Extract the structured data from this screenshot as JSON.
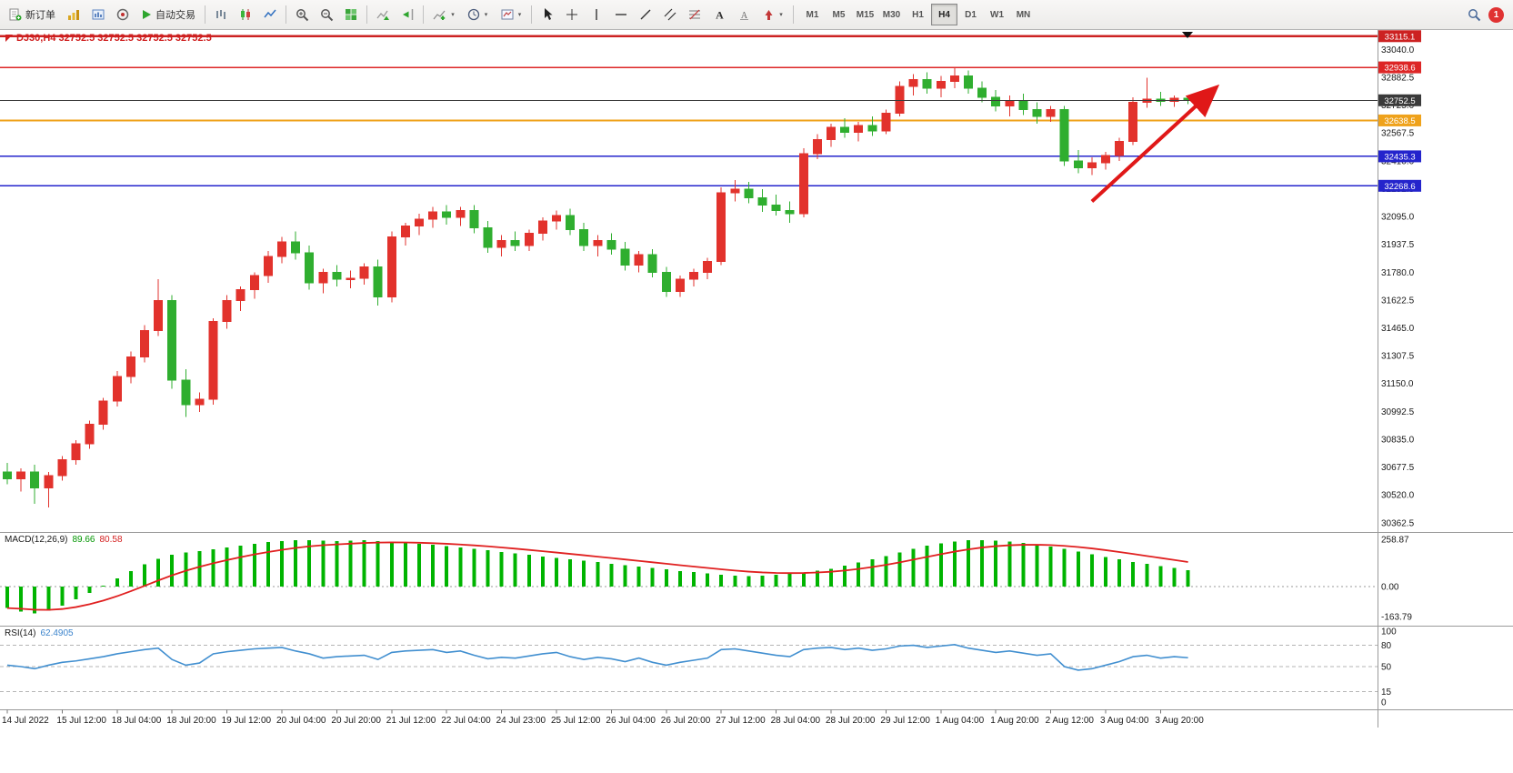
{
  "toolbar": {
    "new_order": "新订单",
    "auto_trading": "自动交易",
    "timeframes": [
      "M1",
      "M5",
      "M15",
      "M30",
      "H1",
      "H4",
      "D1",
      "W1",
      "MN"
    ],
    "active_timeframe": "H4",
    "notification_count": "1"
  },
  "chart": {
    "title": "DJ30,H4 32752.5 32752.5 32752.5 32752.5"
  },
  "chart_data": {
    "type": "candlestick",
    "symbol": "DJ30",
    "timeframe": "H4",
    "colors": {
      "up": "#e2322c",
      "down": "#2fae2f",
      "macd_hist": "#00b400",
      "macd_signal": "#e02020",
      "rsi": "#418fd0"
    },
    "y_axis": {
      "min": 30310,
      "max": 33150,
      "tick_labels": [
        "33040.0",
        "32882.5",
        "32725.0",
        "32567.5",
        "32410.0",
        "32252.5",
        "32095.0",
        "31937.5",
        "31780.0",
        "31622.5",
        "31465.0",
        "31307.5",
        "31150.0",
        "30992.5",
        "30835.0",
        "30677.5",
        "30520.0",
        "30362.5"
      ]
    },
    "hlines": [
      {
        "price": 33115.1,
        "label": "33115.1",
        "color": "#cc2222",
        "width": 2.5
      },
      {
        "price": 32938.6,
        "label": "32938.6",
        "color": "#dd2626",
        "width": 1.6
      },
      {
        "price": 32752.5,
        "label": "32752.5",
        "color": "#3a3a3a",
        "width": 1,
        "current": true
      },
      {
        "price": 32638.5,
        "label": "32638.5",
        "color": "#efa21b",
        "width": 2
      },
      {
        "price": 32435.3,
        "label": "32435.3",
        "color": "#2424cc",
        "width": 1.6
      },
      {
        "price": 32268.6,
        "label": "32268.6",
        "color": "#2424cc",
        "width": 1.6
      }
    ],
    "current_price": 32752.5,
    "x_labels": [
      {
        "text": "14 Jul 2022",
        "i": 0
      },
      {
        "text": "15 Jul 12:00",
        "i": 4
      },
      {
        "text": "18 Jul 04:00",
        "i": 8
      },
      {
        "text": "18 Jul 20:00",
        "i": 12
      },
      {
        "text": "19 Jul 12:00",
        "i": 16
      },
      {
        "text": "20 Jul 04:00",
        "i": 20
      },
      {
        "text": "20 Jul 20:00",
        "i": 24
      },
      {
        "text": "21 Jul 12:00",
        "i": 28
      },
      {
        "text": "22 Jul 04:00",
        "i": 32
      },
      {
        "text": "24 Jul 23:00",
        "i": 36
      },
      {
        "text": "25 Jul 12:00",
        "i": 40
      },
      {
        "text": "26 Jul 04:00",
        "i": 44
      },
      {
        "text": "26 Jul 20:00",
        "i": 48
      },
      {
        "text": "27 Jul 12:00",
        "i": 52
      },
      {
        "text": "28 Jul 04:00",
        "i": 56
      },
      {
        "text": "28 Jul 20:00",
        "i": 60
      },
      {
        "text": "29 Jul 12:00",
        "i": 64
      },
      {
        "text": "1 Aug 04:00",
        "i": 68
      },
      {
        "text": "1 Aug 20:00",
        "i": 72
      },
      {
        "text": "2 Aug 12:00",
        "i": 76
      },
      {
        "text": "3 Aug 04:00",
        "i": 80
      },
      {
        "text": "3 Aug 20:00",
        "i": 84
      }
    ],
    "ohlc": [
      [
        30650,
        30700,
        30580,
        30610
      ],
      [
        30610,
        30670,
        30540,
        30650
      ],
      [
        30650,
        30690,
        30470,
        30560
      ],
      [
        30560,
        30650,
        30450,
        30630
      ],
      [
        30630,
        30740,
        30600,
        30720
      ],
      [
        30720,
        30830,
        30690,
        30810
      ],
      [
        30810,
        30940,
        30780,
        30920
      ],
      [
        30920,
        31070,
        30890,
        31050
      ],
      [
        31050,
        31220,
        31020,
        31190
      ],
      [
        31190,
        31330,
        31150,
        31300
      ],
      [
        31300,
        31480,
        31270,
        31450
      ],
      [
        31450,
        31740,
        31420,
        31620
      ],
      [
        31620,
        31650,
        31120,
        31170
      ],
      [
        31170,
        31230,
        30960,
        31030
      ],
      [
        31030,
        31100,
        30990,
        31060
      ],
      [
        31060,
        31520,
        31030,
        31500
      ],
      [
        31500,
        31650,
        31460,
        31620
      ],
      [
        31620,
        31700,
        31560,
        31680
      ],
      [
        31680,
        31780,
        31630,
        31760
      ],
      [
        31760,
        31900,
        31720,
        31870
      ],
      [
        31870,
        31980,
        31830,
        31950
      ],
      [
        31950,
        32010,
        31850,
        31890
      ],
      [
        31890,
        31930,
        31680,
        31720
      ],
      [
        31720,
        31800,
        31660,
        31780
      ],
      [
        31780,
        31820,
        31700,
        31740
      ],
      [
        31740,
        31790,
        31690,
        31745
      ],
      [
        31745,
        31830,
        31710,
        31810
      ],
      [
        31810,
        31850,
        31590,
        31640
      ],
      [
        31640,
        32010,
        31610,
        31980
      ],
      [
        31980,
        32060,
        31930,
        32040
      ],
      [
        32040,
        32110,
        31990,
        32080
      ],
      [
        32080,
        32150,
        32030,
        32120
      ],
      [
        32120,
        32160,
        32050,
        32090
      ],
      [
        32090,
        32150,
        32040,
        32130
      ],
      [
        32130,
        32160,
        32000,
        32030
      ],
      [
        32030,
        32070,
        31890,
        31920
      ],
      [
        31920,
        31990,
        31870,
        31960
      ],
      [
        31960,
        32010,
        31900,
        31930
      ],
      [
        31930,
        32020,
        31900,
        32000
      ],
      [
        32000,
        32090,
        31960,
        32070
      ],
      [
        32070,
        32130,
        32020,
        32100
      ],
      [
        32100,
        32140,
        31990,
        32020
      ],
      [
        32020,
        32060,
        31900,
        31930
      ],
      [
        31930,
        31990,
        31870,
        31960
      ],
      [
        31960,
        32000,
        31880,
        31910
      ],
      [
        31910,
        31950,
        31790,
        31820
      ],
      [
        31820,
        31900,
        31780,
        31880
      ],
      [
        31880,
        31910,
        31750,
        31780
      ],
      [
        31780,
        31810,
        31640,
        31670
      ],
      [
        31670,
        31760,
        31640,
        31740
      ],
      [
        31740,
        31800,
        31700,
        31780
      ],
      [
        31780,
        31860,
        31740,
        31840
      ],
      [
        31840,
        32260,
        31820,
        32230
      ],
      [
        32230,
        32300,
        32180,
        32250
      ],
      [
        32250,
        32290,
        32170,
        32200
      ],
      [
        32200,
        32250,
        32120,
        32160
      ],
      [
        32160,
        32220,
        32100,
        32130
      ],
      [
        32130,
        32180,
        32060,
        32110
      ],
      [
        32110,
        32480,
        32090,
        32450
      ],
      [
        32450,
        32560,
        32420,
        32530
      ],
      [
        32530,
        32620,
        32490,
        32600
      ],
      [
        32600,
        32650,
        32540,
        32570
      ],
      [
        32570,
        32630,
        32520,
        32610
      ],
      [
        32610,
        32660,
        32550,
        32580
      ],
      [
        32580,
        32700,
        32560,
        32680
      ],
      [
        32680,
        32860,
        32660,
        32830
      ],
      [
        32830,
        32900,
        32780,
        32870
      ],
      [
        32870,
        32910,
        32790,
        32820
      ],
      [
        32820,
        32890,
        32770,
        32860
      ],
      [
        32860,
        32940,
        32820,
        32890
      ],
      [
        32890,
        32920,
        32790,
        32820
      ],
      [
        32820,
        32860,
        32740,
        32770
      ],
      [
        32770,
        32810,
        32690,
        32720
      ],
      [
        32720,
        32780,
        32660,
        32750
      ],
      [
        32750,
        32790,
        32670,
        32700
      ],
      [
        32700,
        32740,
        32620,
        32660
      ],
      [
        32660,
        32720,
        32630,
        32700
      ],
      [
        32700,
        32720,
        32380,
        32410
      ],
      [
        32410,
        32470,
        32340,
        32370
      ],
      [
        32370,
        32430,
        32330,
        32400
      ],
      [
        32400,
        32460,
        32360,
        32440
      ],
      [
        32440,
        32540,
        32410,
        32520
      ],
      [
        32520,
        32770,
        32500,
        32740
      ],
      [
        32740,
        32880,
        32710,
        32760
      ],
      [
        32760,
        32800,
        32720,
        32745
      ],
      [
        32745,
        32780,
        32715,
        32765
      ],
      [
        32765,
        32775,
        32730,
        32752.5
      ]
    ],
    "indicators": {
      "macd": {
        "name": "MACD(12,26,9)",
        "value_main": "89.66",
        "value_signal": "80.58",
        "axis_labels": [
          "258.87",
          "0.00",
          "-163.79"
        ],
        "range": [
          -215,
          300
        ],
        "histogram": [
          -118,
          -138,
          -148,
          -132,
          -105,
          -70,
          -34,
          4,
          44,
          84,
          122,
          152,
          174,
          188,
          196,
          206,
          216,
          226,
          236,
          244,
          250,
          254,
          256,
          253,
          249,
          252,
          255,
          251,
          246,
          241,
          235,
          229,
          222,
          215,
          208,
          201,
          190,
          182,
          174,
          166,
          158,
          150,
          142,
          134,
          126,
          118,
          110,
          102,
          94,
          86,
          79,
          72,
          66,
          61,
          58,
          60,
          64,
          70,
          78,
          88,
          98,
          114,
          132,
          150,
          168,
          188,
          208,
          224,
          238,
          248,
          254,
          255,
          252,
          247,
          240,
          231,
          220,
          207,
          193,
          178,
          163,
          149,
          136,
          124,
          113,
          103,
          89.66
        ]
      },
      "rsi": {
        "name": "RSI(14)",
        "value": "62.4905",
        "axis_labels": [
          "100",
          "80",
          "50",
          "15",
          "0"
        ],
        "levels": [
          80,
          50,
          15
        ],
        "values": [
          52,
          50,
          47,
          52,
          56,
          58,
          61,
          64,
          68,
          71,
          74,
          76,
          60,
          52,
          55,
          68,
          71,
          73,
          75,
          76,
          77,
          72,
          68,
          62,
          64,
          65,
          66,
          60,
          70,
          72,
          73,
          74,
          70,
          72,
          66,
          61,
          63,
          62,
          65,
          68,
          70,
          64,
          60,
          63,
          61,
          57,
          62,
          56,
          52,
          56,
          59,
          62,
          74,
          75,
          72,
          69,
          66,
          64,
          74,
          76,
          77,
          74,
          76,
          73,
          75,
          79,
          80,
          77,
          79,
          81,
          76,
          73,
          70,
          72,
          69,
          66,
          68,
          50,
          45,
          47,
          52,
          57,
          64,
          66,
          62,
          64,
          62.49
        ]
      }
    },
    "annotation_arrow": {
      "from_index": 79,
      "from_price": 32180,
      "to_index": 87.7,
      "to_price": 32800,
      "color": "#e01818",
      "width": 4
    }
  }
}
